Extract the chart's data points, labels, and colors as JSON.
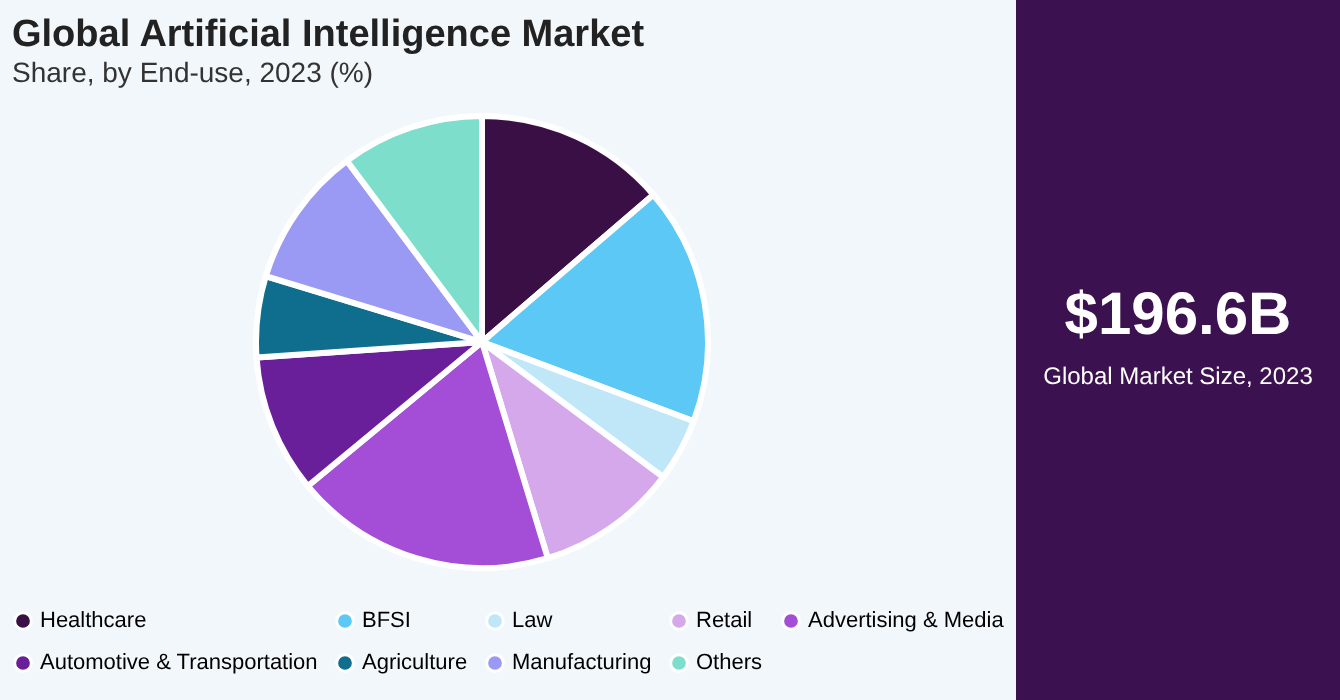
{
  "chart_data": [
    {
      "type": "pie",
      "title": "Global Artificial Intelligence Market",
      "subtitle": "Share, by End-use, 2023 (%)",
      "categories": [
        "Healthcare",
        "BFSI",
        "Law",
        "Retail",
        "Advertising & Media",
        "Automotive & Transportation",
        "Agriculture",
        "Manufacturing",
        "Others"
      ],
      "values": [
        13.7,
        17.0,
        4.5,
        10.1,
        18.7,
        9.9,
        5.8,
        10.1,
        10.2
      ],
      "colors": [
        "#3a0f45",
        "#5bc8f5",
        "#bfe7f7",
        "#d4a8ea",
        "#a44dd6",
        "#6a1f9a",
        "#0f6e8e",
        "#9a9af5",
        "#7ddfcb"
      ],
      "legend": "bottom"
    },
    {
      "type": "other",
      "title": "$196.6B",
      "subtitle": "Global Market Size, 2023"
    }
  ]
}
